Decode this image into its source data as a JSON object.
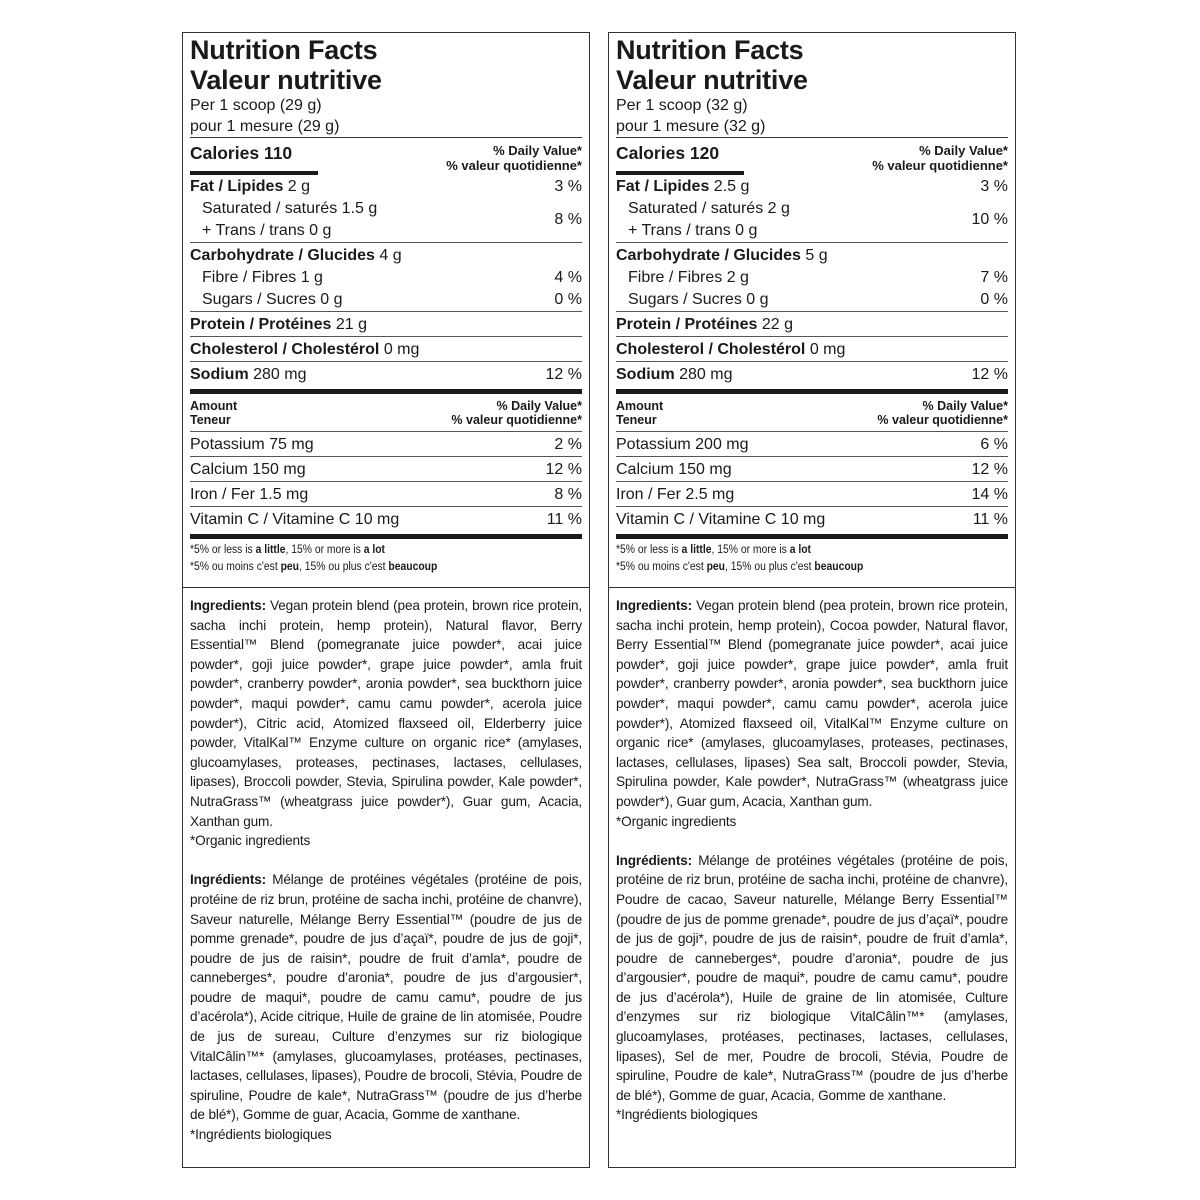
{
  "panels": [
    {
      "title_en": "Nutrition Facts",
      "title_fr": "Valeur nutritive",
      "serving_en": "Per 1 scoop (29 g)",
      "serving_fr": "pour 1 mesure (29 g)",
      "calories": "Calories 110",
      "dv_header_en": "% Daily Value*",
      "dv_header_fr": "% valeur quotidienne*",
      "rows": [
        {
          "bold": "Fat / Lipides",
          "text": " 2 g",
          "dv": "3 %"
        },
        {
          "text": "Saturated / saturés 1.5 g",
          "text2": "+ Trans / trans 0 g",
          "dv": "8 %",
          "indent": true
        },
        {
          "bold": "Carbohydrate / Glucides",
          "text": " 4 g",
          "sep": true
        },
        {
          "text": "Fibre / Fibres 1 g",
          "dv": "4 %",
          "indent": true
        },
        {
          "text": "Sugars / Sucres 0 g",
          "dv": "0 %",
          "indent": true
        },
        {
          "bold": "Protein / Protéines",
          "text": " 21 g",
          "sep": true
        },
        {
          "bold": "Cholesterol / Cholestérol",
          "text": " 0 mg",
          "sep": true
        },
        {
          "bold": "Sodium",
          "text": " 280 mg",
          "dv": "12 %",
          "sep": true
        }
      ],
      "amount_en": "Amount",
      "amount_fr": "Teneur",
      "minerals": [
        {
          "text": "Potassium 75 mg",
          "dv": "2 %"
        },
        {
          "text": "Calcium 150 mg",
          "dv": "12 %"
        },
        {
          "text": "Iron / Fer 1.5 mg",
          "dv": "8 %"
        },
        {
          "text": "Vitamin C / Vitamine C 10 mg",
          "dv": "11 %"
        }
      ],
      "foot_en": [
        "*5% or less is ",
        "a little",
        ", 15% or more is ",
        "a lot"
      ],
      "foot_fr": [
        "*5% ou moins c'est ",
        "peu",
        ", 15% ou plus c'est ",
        "beaucoup"
      ],
      "ing_en_label": "Ingredients:",
      "ing_en": " Vegan protein blend (pea protein, brown rice protein, sacha inchi protein, hemp protein), Natural flavor, Berry Essential™ Blend (pomegranate juice powder*, acai juice powder*, goji juice powder*, grape juice powder*, amla fruit powder*, cranberry powder*, aronia powder*, sea buckthorn juice powder*, maqui powder*, camu camu powder*, acerola juice powder*), Citric acid, Atomized flaxseed oil, Elderberry juice powder, VitalKal™ Enzyme culture on organic rice* (amylases, glucoamylases, proteases, pectinases, lactases, cellulases, lipases), Broccoli powder, Stevia, Spirulina powder, Kale powder*, NutraGrass™ (wheatgrass juice powder*), Guar gum, Acacia, Xanthan gum.",
      "ing_en_note": "*Organic ingredients",
      "ing_fr_label": "Ingrédients:",
      "ing_fr": " Mélange de protéines végétales (protéine de pois, protéine de riz brun, protéine de sacha inchi, protéine de chanvre), Saveur naturelle, Mélange Berry Essential™ (poudre de jus de pomme grenade*, poudre de jus d’açaï*, poudre de jus de goji*, poudre de jus de raisin*, poudre de fruit d’amla*, poudre de canneberges*, poudre d’aronia*, poudre de jus d’argousier*, poudre de maqui*, poudre de camu camu*, poudre de jus d’acérola*), Acide citrique, Huile de graine de lin atomisée, Poudre de jus de sureau, Culture d’enzymes sur riz biologique VitalCâlin™* (amylases, glucoamylases, protéases, pectinases, lactases, cellulases, lipases), Poudre de brocoli, Stévia, Poudre de spiruline, Poudre de kale*, NutraGrass™ (poudre de jus d’herbe de blé*), Gomme de guar, Acacia, Gomme de xanthane.",
      "ing_fr_note": "*Ingrédients biologiques"
    },
    {
      "title_en": "Nutrition Facts",
      "title_fr": "Valeur nutritive",
      "serving_en": "Per 1 scoop (32 g)",
      "serving_fr": "pour 1 mesure (32 g)",
      "calories": "Calories 120",
      "dv_header_en": "% Daily Value*",
      "dv_header_fr": "% valeur quotidienne*",
      "rows": [
        {
          "bold": "Fat / Lipides",
          "text": " 2.5 g",
          "dv": "3 %"
        },
        {
          "text": "Saturated / saturés 2 g",
          "text2": "+ Trans / trans 0 g",
          "dv": "10 %",
          "indent": true
        },
        {
          "bold": "Carbohydrate / Glucides",
          "text": " 5 g",
          "sep": true
        },
        {
          "text": "Fibre / Fibres 2 g",
          "dv": "7 %",
          "indent": true
        },
        {
          "text": "Sugars / Sucres 0 g",
          "dv": "0 %",
          "indent": true
        },
        {
          "bold": "Protein / Protéines",
          "text": " 22 g",
          "sep": true
        },
        {
          "bold": "Cholesterol / Cholestérol",
          "text": " 0 mg",
          "sep": true
        },
        {
          "bold": "Sodium",
          "text": " 280 mg",
          "dv": "12 %",
          "sep": true
        }
      ],
      "amount_en": "Amount",
      "amount_fr": "Teneur",
      "minerals": [
        {
          "text": "Potassium 200 mg",
          "dv": "6 %"
        },
        {
          "text": "Calcium 150 mg",
          "dv": "12 %"
        },
        {
          "text": "Iron / Fer 2.5 mg",
          "dv": "14 %"
        },
        {
          "text": "Vitamin C / Vitamine C 10 mg",
          "dv": "11 %"
        }
      ],
      "foot_en": [
        "*5% or less is ",
        "a little",
        ", 15% or more is ",
        "a lot"
      ],
      "foot_fr": [
        "*5% ou moins c'est ",
        "peu",
        ", 15% ou plus c'est ",
        "beaucoup"
      ],
      "ing_en_label": "Ingredients:",
      "ing_en": " Vegan protein blend (pea protein, brown rice protein, sacha inchi protein, hemp protein), Cocoa powder, Natural flavor, Berry Essential™ Blend (pomegranate juice powder*, acai juice powder*, goji juice powder*, grape juice powder*, amla fruit powder*, cranberry powder*, aronia powder*, sea buckthorn juice powder*, maqui powder*, camu camu powder*, acerola juice powder*), Atomized flaxseed oil, VitalKal™ Enzyme culture on organic rice* (amylases, glucoamylases, proteases, pectinases, lactases, cellulases, lipases) Sea salt, Broccoli powder, Stevia, Spirulina powder, Kale powder*, NutraGrass™ (wheatgrass juice powder*), Guar gum, Acacia, Xanthan gum.",
      "ing_en_note": "*Organic ingredients",
      "ing_fr_label": "Ingrédients:",
      "ing_fr": " Mélange de protéines végétales (protéine de pois, protéine de riz brun, protéine de sacha inchi, protéine de chanvre), Poudre de cacao, Saveur naturelle, Mélange Berry Essential™ (poudre de jus de pomme grenade*, poudre de jus d’açaï*, poudre de jus de goji*, poudre de jus de raisin*, poudre de fruit d’amla*, poudre de canneberges*, poudre d’aronia*, poudre de jus d’argousier*, poudre de maqui*, poudre de camu camu*, poudre de jus d’acérola*), Huile de graine de lin atomisée, Culture d’enzymes sur riz biologique VitalCâlin™* (amylases, glucoamylases, protéases, pectinases, lactases, cellulases, lipases), Sel de mer, Poudre de brocoli, Stévia, Poudre de spiruline, Poudre de kale*, NutraGrass™ (poudre de jus d’herbe de blé*), Gomme de guar, Acacia, Gomme de xanthane.",
      "ing_fr_note": "*Ingrédients biologiques"
    }
  ]
}
